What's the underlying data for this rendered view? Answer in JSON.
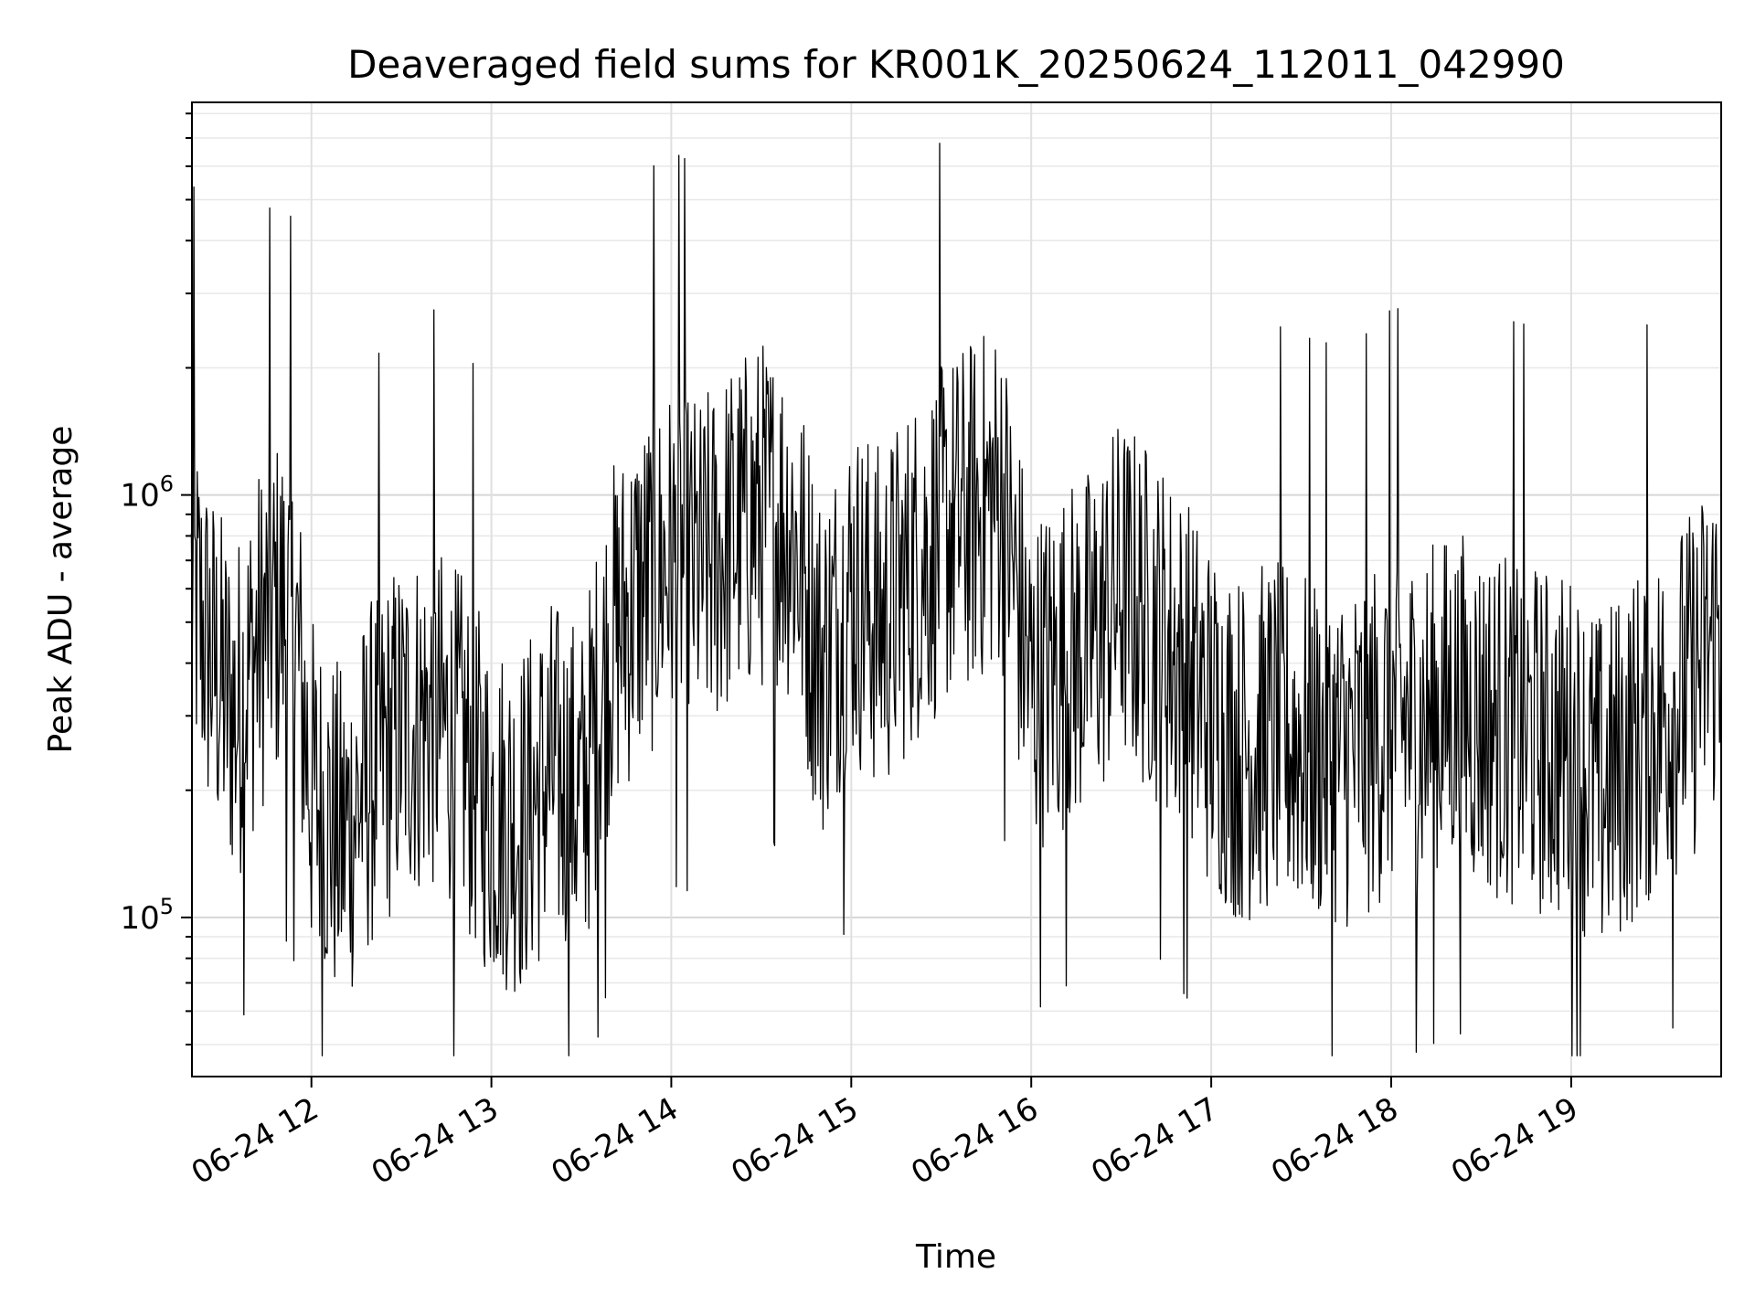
{
  "chart_data": {
    "type": "line",
    "title": "Deaveraged field sums for KR001K_20250624_112011_042990",
    "xlabel": "Time",
    "ylabel": "Peak ADU - average",
    "yscale": "log",
    "ylim": [
      42000,
      8500000
    ],
    "xlim": [
      "2025-06-24T11:20:11",
      "2025-06-24T19:50:00"
    ],
    "grid": true,
    "line_color": "#000000",
    "x_ticks": [
      {
        "value": "2025-06-24T12:00:00",
        "label": "06-24 12"
      },
      {
        "value": "2025-06-24T13:00:00",
        "label": "06-24 13"
      },
      {
        "value": "2025-06-24T14:00:00",
        "label": "06-24 14"
      },
      {
        "value": "2025-06-24T15:00:00",
        "label": "06-24 15"
      },
      {
        "value": "2025-06-24T16:00:00",
        "label": "06-24 16"
      },
      {
        "value": "2025-06-24T17:00:00",
        "label": "06-24 17"
      },
      {
        "value": "2025-06-24T18:00:00",
        "label": "06-24 18"
      },
      {
        "value": "2025-06-24T19:00:00",
        "label": "06-24 19"
      }
    ],
    "y_ticks": [
      {
        "value": 100000,
        "base": "10",
        "exp": "5"
      },
      {
        "value": 1000000,
        "base": "10",
        "exp": "6"
      }
    ],
    "series": [
      {
        "x": [
          "2025-06-24T11:20",
          "2025-06-24T11:25",
          "2025-06-24T11:30",
          "2025-06-24T11:35",
          "2025-06-24T11:40",
          "2025-06-24T11:45",
          "2025-06-24T11:50",
          "2025-06-24T11:55",
          "2025-06-24T12:00",
          "2025-06-24T12:10",
          "2025-06-24T12:20",
          "2025-06-24T12:30",
          "2025-06-24T12:40",
          "2025-06-24T12:50",
          "2025-06-24T13:00",
          "2025-06-24T13:10",
          "2025-06-24T13:20",
          "2025-06-24T13:30",
          "2025-06-24T13:40",
          "2025-06-24T13:50",
          "2025-06-24T14:00",
          "2025-06-24T14:10",
          "2025-06-24T14:20",
          "2025-06-24T14:30",
          "2025-06-24T14:40",
          "2025-06-24T14:50",
          "2025-06-24T15:00",
          "2025-06-24T15:10",
          "2025-06-24T15:20",
          "2025-06-24T15:30",
          "2025-06-24T15:40",
          "2025-06-24T15:50",
          "2025-06-24T16:00",
          "2025-06-24T16:10",
          "2025-06-24T16:20",
          "2025-06-24T16:30",
          "2025-06-24T16:40",
          "2025-06-24T16:50",
          "2025-06-24T17:00",
          "2025-06-24T17:10",
          "2025-06-24T17:20",
          "2025-06-24T17:30",
          "2025-06-24T17:40",
          "2025-06-24T17:50",
          "2025-06-24T18:00",
          "2025-06-24T18:10",
          "2025-06-24T18:20",
          "2025-06-24T18:30",
          "2025-06-24T18:40",
          "2025-06-24T18:50",
          "2025-06-24T19:00",
          "2025-06-24T19:10",
          "2025-06-24T19:20",
          "2025-06-24T19:30",
          "2025-06-24T19:40",
          "2025-06-24T19:50"
        ],
        "y": [
          600000,
          450000,
          350000,
          300000,
          400000,
          500000,
          550000,
          450000,
          200000,
          150000,
          220000,
          280000,
          300000,
          250000,
          180000,
          170000,
          220000,
          190000,
          450000,
          600000,
          700000,
          650000,
          800000,
          900000,
          850000,
          400000,
          600000,
          500000,
          650000,
          800000,
          900000,
          1000000,
          350000,
          400000,
          450000,
          600000,
          500000,
          400000,
          300000,
          250000,
          270000,
          260000,
          240000,
          250000,
          300000,
          280000,
          320000,
          300000,
          280000,
          260000,
          250000,
          200000,
          250000,
          300000,
          350000,
          500000
        ]
      }
    ]
  }
}
